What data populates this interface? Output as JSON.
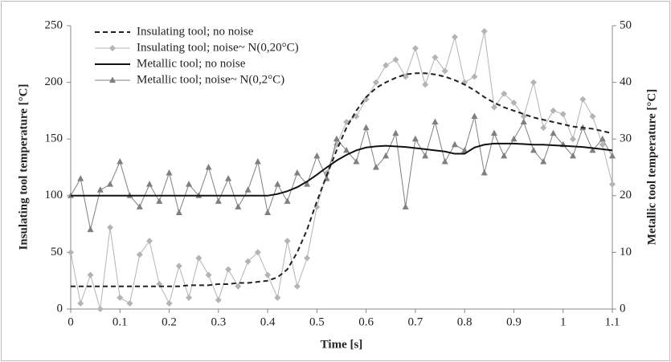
{
  "chart_data": {
    "type": "line",
    "x_label": "Time [s]",
    "y_label": "Insulating tool temperature [°C]",
    "y2_label": "Metallic tool temperature [°C]",
    "x": [
      0,
      0.02,
      0.04,
      0.06,
      0.08,
      0.1,
      0.12,
      0.14,
      0.16,
      0.18,
      0.2,
      0.22,
      0.24,
      0.26,
      0.28,
      0.3,
      0.32,
      0.34,
      0.36,
      0.38,
      0.4,
      0.42,
      0.44,
      0.46,
      0.48,
      0.5,
      0.52,
      0.54,
      0.56,
      0.58,
      0.6,
      0.62,
      0.64,
      0.66,
      0.68,
      0.7,
      0.72,
      0.74,
      0.76,
      0.78,
      0.8,
      0.82,
      0.84,
      0.86,
      0.88,
      0.9,
      0.92,
      0.94,
      0.96,
      0.98,
      1.0,
      1.02,
      1.04,
      1.06,
      1.08,
      1.1
    ],
    "series": [
      {
        "name": "Insulating tool; no noise",
        "color": "#222222",
        "line_style": "dashed",
        "marker": "none",
        "axis": "y",
        "values": [
          20,
          20,
          20,
          20,
          20,
          20,
          20,
          20,
          20,
          20,
          20,
          20,
          21,
          21,
          21,
          22,
          22,
          23,
          23,
          24,
          25,
          28,
          35,
          50,
          70,
          95,
          118,
          140,
          160,
          175,
          187,
          195,
          200,
          204,
          207,
          208,
          208,
          207,
          205,
          202,
          198,
          193,
          187,
          182,
          178,
          175,
          172,
          169,
          167,
          165,
          163,
          161,
          160,
          159,
          157,
          155
        ]
      },
      {
        "name": "Insulating tool; noise~ N(0,20°C)",
        "color": "#b4b4b4",
        "line_style": "solid",
        "marker": "diamond",
        "axis": "y",
        "values": [
          50,
          5,
          30,
          0,
          72,
          10,
          5,
          48,
          60,
          22,
          5,
          38,
          10,
          45,
          30,
          8,
          35,
          20,
          42,
          50,
          30,
          10,
          60,
          20,
          45,
          90,
          120,
          145,
          165,
          170,
          185,
          200,
          215,
          220,
          205,
          230,
          198,
          222,
          210,
          240,
          200,
          205,
          245,
          178,
          190,
          182,
          170,
          200,
          160,
          175,
          172,
          150,
          185,
          170,
          145,
          110
        ]
      },
      {
        "name": "Metallic tool; no noise",
        "color": "#111111",
        "line_style": "solid",
        "marker": "none",
        "axis": "y2",
        "values": [
          20,
          20,
          20,
          20,
          20,
          20,
          20,
          20,
          20,
          20,
          20,
          20,
          20,
          20,
          20,
          20,
          20,
          20,
          20,
          20,
          20,
          20.3,
          20.8,
          21.5,
          22.5,
          23.7,
          25,
          26.2,
          27.2,
          28,
          28.5,
          28.7,
          28.8,
          28.7,
          28.6,
          28.4,
          28.2,
          28,
          27.8,
          27.4,
          27.4,
          28.5,
          29,
          29.2,
          29.2,
          29.2,
          29.1,
          29,
          29,
          28.9,
          28.8,
          28.7,
          28.6,
          28.4,
          28.2,
          28
        ]
      },
      {
        "name": "Metallic tool; noise~ N(0,2°C)",
        "color": "#7f7f7f",
        "line_style": "solid",
        "marker": "triangle",
        "axis": "y2",
        "values": [
          20,
          23,
          14,
          21,
          22,
          26,
          20,
          18,
          22,
          19,
          24,
          17,
          22,
          20,
          25,
          19,
          23,
          18,
          21,
          26,
          17,
          22,
          19,
          24,
          22,
          27,
          23,
          30,
          28,
          26,
          32,
          25,
          27,
          31,
          18,
          30,
          27,
          33,
          26,
          29,
          28,
          34,
          24,
          31,
          27,
          30,
          33,
          28,
          26,
          31,
          29,
          27,
          32,
          28,
          30,
          27
        ]
      }
    ],
    "xlim": [
      0,
      1.1
    ],
    "xticks": [
      0,
      0.1,
      0.2,
      0.3,
      0.4,
      0.5,
      0.6,
      0.7,
      0.8,
      0.9,
      1,
      1.1
    ],
    "ylim": [
      0,
      250
    ],
    "yticks": [
      0,
      50,
      100,
      150,
      200,
      250
    ],
    "y2lim": [
      0,
      50
    ],
    "y2ticks": [
      0,
      10,
      20,
      30,
      40,
      50
    ],
    "grid": false,
    "legend": "upper left"
  }
}
